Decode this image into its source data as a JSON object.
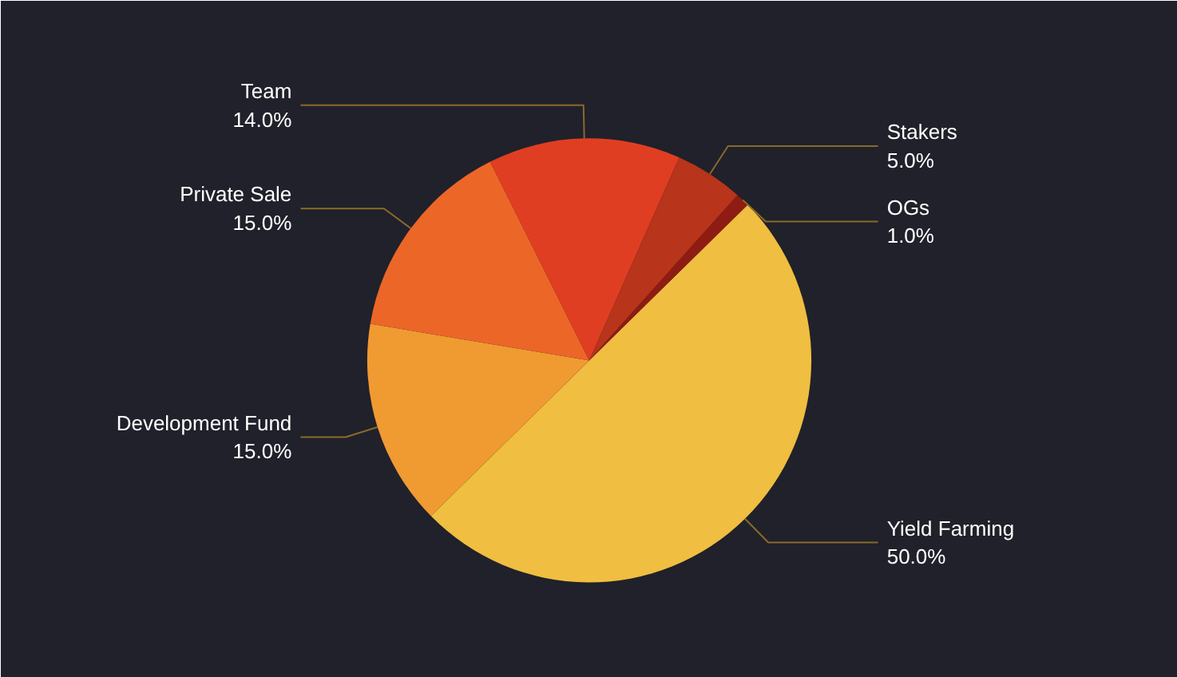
{
  "chart_data": {
    "type": "pie",
    "categories": [
      "Yield Farming",
      "Development Fund",
      "Private Sale",
      "Team",
      "Stakers",
      "OGs"
    ],
    "values": [
      50.0,
      15.0,
      15.0,
      14.0,
      5.0,
      1.0
    ],
    "colors": [
      "#f0be40",
      "#f09a32",
      "#ec6628",
      "#e03e22",
      "#b8341a",
      "#8e1c12"
    ],
    "value_labels": [
      "50.0%",
      "15.0%",
      "15.0%",
      "14.0%",
      "5.0%",
      "1.0%"
    ]
  }
}
